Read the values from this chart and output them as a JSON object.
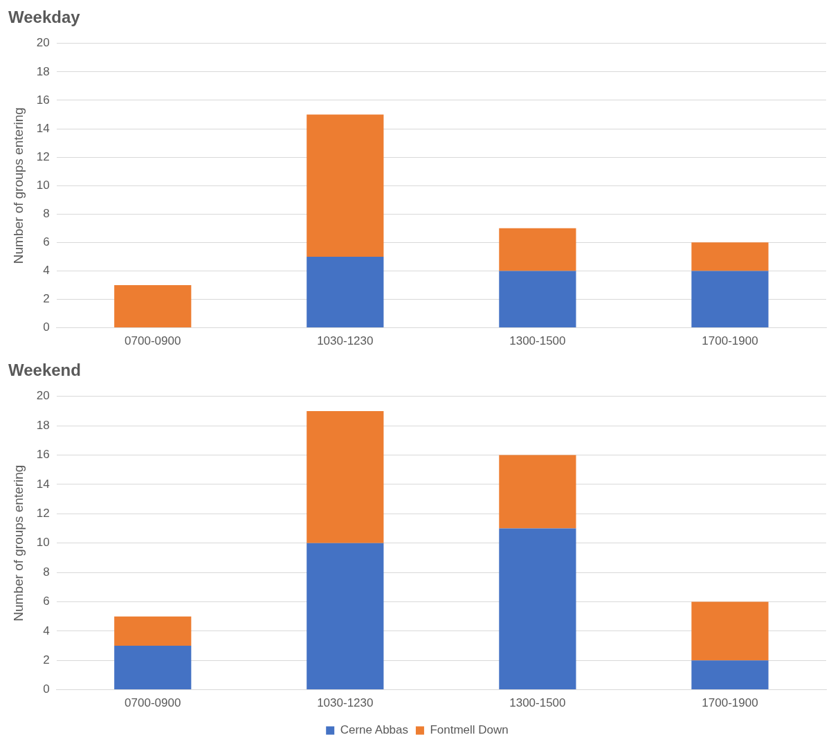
{
  "chart_data": [
    {
      "type": "bar",
      "title": "Weekday",
      "ylabel": "Number of groups entering",
      "categories": [
        "0700-0900",
        "1030-1230",
        "1300-1500",
        "1700-1900"
      ],
      "stacked": true,
      "series": [
        {
          "color": "#4472c4",
          "values": [
            0,
            5,
            4,
            4
          ]
        },
        {
          "color": "#ed7d31",
          "values": [
            3,
            10,
            3,
            2
          ]
        }
      ],
      "ylim": [
        0,
        20
      ],
      "yticks": [
        0,
        2,
        4,
        6,
        8,
        10,
        12,
        14,
        16,
        18,
        20
      ],
      "grid": "y",
      "legend": false
    },
    {
      "type": "bar",
      "title": "Weekend",
      "ylabel": "Number of groups entering",
      "categories": [
        "0700-0900",
        "1030-1230",
        "1300-1500",
        "1700-1900"
      ],
      "stacked": true,
      "series": [
        {
          "name": "Cerne Abbas",
          "color": "#4472c4",
          "values": [
            3,
            10,
            11,
            2
          ]
        },
        {
          "name": "Fontmell Down",
          "color": "#ed7d31",
          "values": [
            2,
            9,
            5,
            4
          ]
        }
      ],
      "ylim": [
        0,
        20
      ],
      "yticks": [
        0,
        2,
        4,
        6,
        8,
        10,
        12,
        14,
        16,
        18,
        20
      ],
      "grid": "y",
      "legend": "bottom"
    }
  ]
}
